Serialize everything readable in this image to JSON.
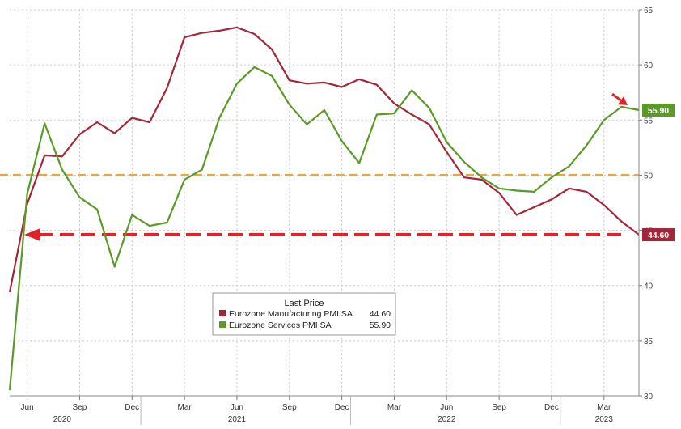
{
  "chart_data": {
    "type": "line",
    "x": [
      "2020-05",
      "2020-06",
      "2020-07",
      "2020-08",
      "2020-09",
      "2020-10",
      "2020-11",
      "2020-12",
      "2021-01",
      "2021-02",
      "2021-03",
      "2021-04",
      "2021-05",
      "2021-06",
      "2021-07",
      "2021-08",
      "2021-09",
      "2021-10",
      "2021-11",
      "2021-12",
      "2022-01",
      "2022-02",
      "2022-03",
      "2022-04",
      "2022-05",
      "2022-06",
      "2022-07",
      "2022-08",
      "2022-09",
      "2022-10",
      "2022-11",
      "2022-12",
      "2023-01",
      "2023-02",
      "2023-03",
      "2023-04",
      "2023-05"
    ],
    "x_tick_labels": [
      {
        "x": "2020-06",
        "label": "Jun"
      },
      {
        "x": "2020-09",
        "label": "Sep"
      },
      {
        "x": "2020-12",
        "label": "Dec"
      },
      {
        "x": "2021-03",
        "label": "Mar"
      },
      {
        "x": "2021-06",
        "label": "Jun"
      },
      {
        "x": "2021-09",
        "label": "Sep"
      },
      {
        "x": "2021-12",
        "label": "Dec"
      },
      {
        "x": "2022-03",
        "label": "Mar"
      },
      {
        "x": "2022-06",
        "label": "Jun"
      },
      {
        "x": "2022-09",
        "label": "Sep"
      },
      {
        "x": "2022-12",
        "label": "Dec"
      },
      {
        "x": "2023-03",
        "label": "Mar"
      }
    ],
    "year_labels": [
      {
        "x": "2020-08",
        "label": "2020"
      },
      {
        "x": "2021-06",
        "label": "2021"
      },
      {
        "x": "2022-06",
        "label": "2022"
      },
      {
        "x": "2023-03",
        "label": "2023"
      }
    ],
    "ylim": [
      30,
      65
    ],
    "yticks": [
      30,
      35,
      40,
      45,
      50,
      55,
      60,
      65
    ],
    "series": [
      {
        "name": "Eurozone Manufacturing PMI SA",
        "last_price_label": "44.60",
        "color": "#a3273a",
        "values": [
          39.4,
          47.4,
          51.8,
          51.7,
          53.7,
          54.8,
          53.8,
          55.2,
          54.8,
          57.9,
          62.5,
          62.9,
          63.1,
          63.4,
          62.8,
          61.4,
          58.6,
          58.3,
          58.4,
          58.0,
          58.7,
          58.2,
          56.5,
          55.5,
          54.6,
          52.1,
          49.8,
          49.6,
          48.4,
          46.4,
          47.1,
          47.8,
          48.8,
          48.5,
          47.3,
          45.8,
          44.6
        ]
      },
      {
        "name": "Eurozone Services PMI SA",
        "last_price_label": "55.90",
        "color": "#5a9a26",
        "values": [
          30.5,
          48.3,
          54.7,
          50.5,
          48.0,
          46.9,
          41.7,
          46.4,
          45.4,
          45.7,
          49.6,
          50.5,
          55.2,
          58.3,
          59.8,
          59.0,
          56.4,
          54.6,
          55.9,
          53.1,
          51.1,
          55.5,
          55.6,
          57.7,
          56.1,
          53.0,
          51.2,
          49.8,
          48.8,
          48.6,
          48.5,
          49.8,
          50.8,
          52.7,
          55.0,
          56.2,
          55.9
        ]
      }
    ],
    "reference_line": {
      "y": 50,
      "color": "#f5a623",
      "style": "dashed"
    },
    "arrow_line": {
      "y": 44.6,
      "color": "#e0242c",
      "style": "dashed-arrow"
    },
    "legend": {
      "title": "Last Price",
      "placement": "bottom-center"
    },
    "grid": true,
    "axis_position": "right"
  }
}
